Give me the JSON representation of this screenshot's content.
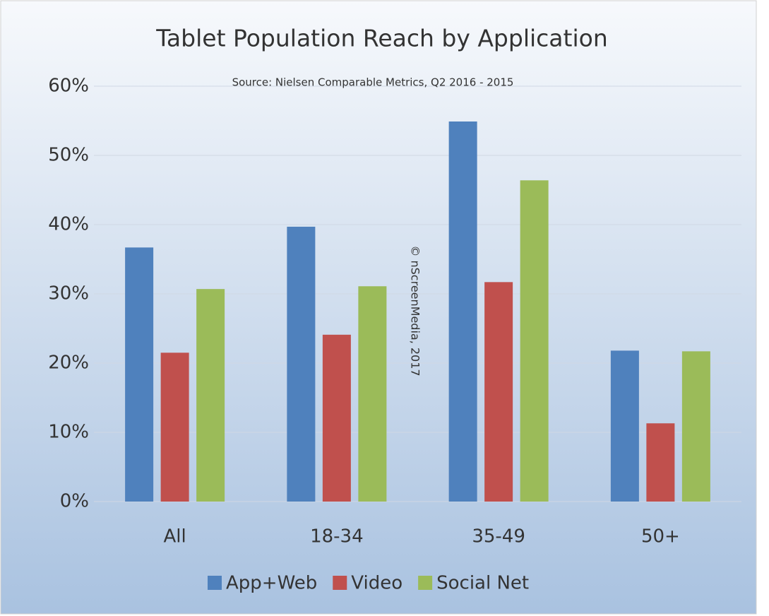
{
  "chart_data": {
    "type": "bar",
    "title": "Tablet Population Reach by Application",
    "subtitle": "Source: Nielsen Comparable Metrics, Q2 2016 - 2015",
    "annotation": "© nScreenMedia, 2017",
    "categories": [
      "All",
      "18-34",
      "35-49",
      "50+"
    ],
    "series": [
      {
        "name": "App+Web",
        "color": "#4f81bd",
        "values": [
          36.7,
          39.7,
          54.9,
          21.8
        ]
      },
      {
        "name": "Video",
        "color": "#c0504d",
        "values": [
          21.5,
          24.1,
          31.7,
          11.3
        ]
      },
      {
        "name": "Social Net",
        "color": "#9bbb59",
        "values": [
          30.7,
          31.1,
          46.4,
          21.7
        ]
      }
    ],
    "ylim": [
      0,
      60
    ],
    "yticks": [
      {
        "value": 0,
        "label": "0%"
      },
      {
        "value": 10,
        "label": "10%"
      },
      {
        "value": 20,
        "label": "20%"
      },
      {
        "value": 30,
        "label": "30%"
      },
      {
        "value": 40,
        "label": "40%"
      },
      {
        "value": 50,
        "label": "50%"
      },
      {
        "value": 60,
        "label": "60%"
      }
    ],
    "grid": true,
    "legend": "bottom"
  }
}
